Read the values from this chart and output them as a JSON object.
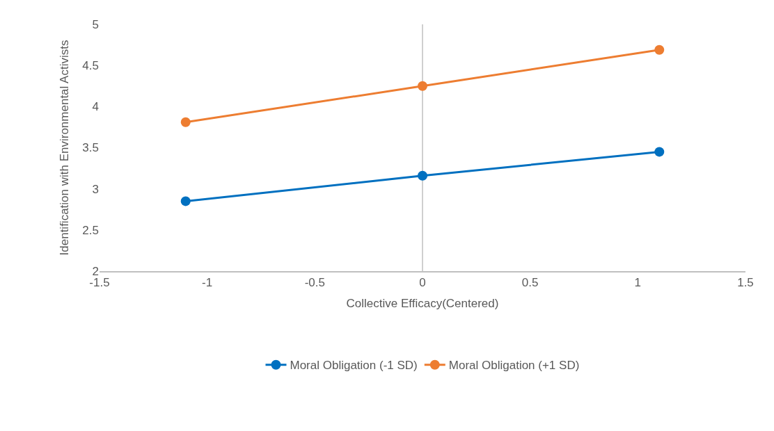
{
  "chart_data": {
    "type": "line",
    "xlabel": "Collective Efficacy(Centered)",
    "ylabel": "Identification with Environmental Activists",
    "x": [
      -1.1,
      0,
      1.1
    ],
    "series": [
      {
        "name": "Moral Obligation (-1 SD)",
        "color": "#0070c0",
        "values": [
          2.85,
          3.16,
          3.45
        ]
      },
      {
        "name": "Moral Obligation (+1 SD)",
        "color": "#ed7d31",
        "values": [
          3.81,
          4.25,
          4.69
        ]
      }
    ],
    "xlim": [
      -1.5,
      1.5
    ],
    "xticks": [
      -1.5,
      -1,
      -0.5,
      0,
      0.5,
      1,
      1.5
    ],
    "ylim": [
      2,
      5
    ],
    "yticks": [
      2,
      2.5,
      3,
      3.5,
      4,
      4.5,
      5
    ],
    "ref_lines": [
      {
        "axis": "x",
        "value": 0,
        "color": "#bfbfbf"
      }
    ],
    "marker": "circle",
    "line_style": "solid",
    "legend": "bottom",
    "grid": false
  }
}
